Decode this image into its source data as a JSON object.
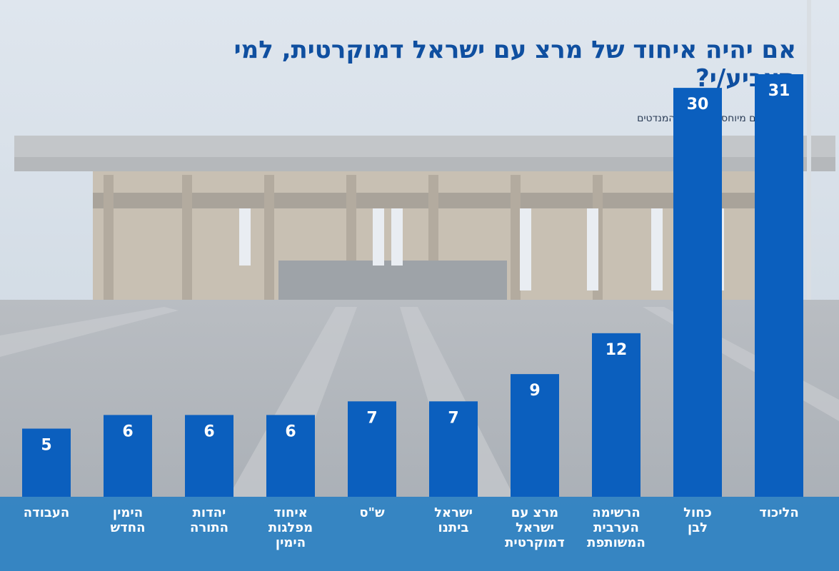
{
  "header": {
    "title": "אם יהיה איחוד של מרצ עם ישראל דמוקרטית, למי תצביע/י?",
    "subtitle": "*המספרים מיוחסים למספר המנדטים"
  },
  "colors": {
    "bar": "#0b5fbe",
    "band": "#2a7fc4",
    "title": "#0f4fa0"
  },
  "chart_data": {
    "type": "bar",
    "categories": [
      "הליכוד",
      "כחול לבן",
      "הרשימה הערבית המשותפת",
      "מרצ עם ישראל דמוקרטית",
      "ישראל ביתנו",
      "ש\"ס",
      "איחוד מפלגות הימין",
      "יהדות התורה",
      "הימין החדש",
      "העבודה"
    ],
    "category_lines": [
      [
        "הליכוד"
      ],
      [
        "כחול",
        "לבן"
      ],
      [
        "הרשימה",
        "הערבית",
        "המשותפת"
      ],
      [
        "מרצ עם",
        "ישראל",
        "דמוקרטית"
      ],
      [
        "ישראל",
        "ביתנו"
      ],
      [
        "ש\"ס"
      ],
      [
        "איחוד",
        "מפלגות",
        "הימין"
      ],
      [
        "יהדות",
        "התורה"
      ],
      [
        "הימין",
        "החדש"
      ],
      [
        "העבודה"
      ]
    ],
    "values": [
      31,
      30,
      12,
      9,
      7,
      7,
      6,
      6,
      6,
      5
    ],
    "ylim": [
      0,
      31
    ],
    "grid": false,
    "legend": "none"
  }
}
